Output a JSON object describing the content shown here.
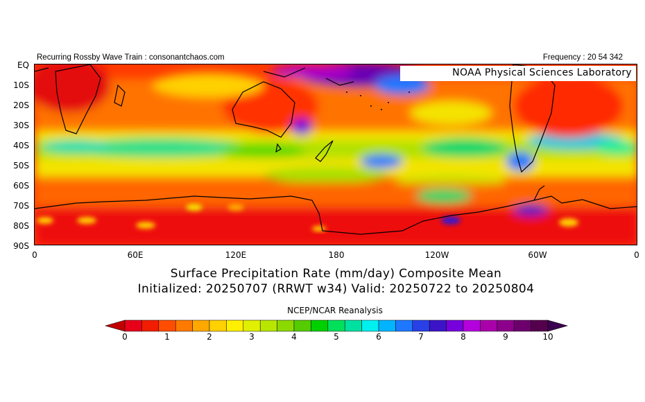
{
  "header": {
    "left_text": "Recurring Rossby Wave Train : consonantchaos.com",
    "right_text": "Frequency : 20 54 342",
    "lab_label": "NOAA Physical Sciences Laboratory"
  },
  "map": {
    "y_labels": [
      "EQ",
      "10S",
      "20S",
      "30S",
      "40S",
      "50S",
      "60S",
      "70S",
      "80S",
      "90S"
    ],
    "x_labels": [
      "0",
      "60E",
      "120E",
      "180",
      "120W",
      "60W",
      "0"
    ],
    "legend_title": "NCEP/NCAR Reanalysis"
  },
  "titles": {
    "line1": "Surface Precipitation Rate (mm/day) Composite Mean",
    "line2": "Initialized: 20250707 (RRWT w34) Valid: 20250722 to 20250804"
  },
  "colorbar": {
    "labels": [
      "0",
      "1",
      "2",
      "3",
      "4",
      "5",
      "6",
      "7",
      "8",
      "9",
      "10"
    ],
    "colors": [
      "#e8001a",
      "#f21d00",
      "#ff4d00",
      "#ff7a00",
      "#ffa800",
      "#ffd100",
      "#fff000",
      "#e0f000",
      "#b8e600",
      "#8cd900",
      "#55cc00",
      "#00d000",
      "#00e05a",
      "#00e0a0",
      "#00f0f0",
      "#00b4ff",
      "#1e78ff",
      "#2840e6",
      "#3c14c8",
      "#7800dc",
      "#b400dc",
      "#aa00aa",
      "#8c008c",
      "#6e006e",
      "#55004d"
    ],
    "end_low": "#c00000",
    "end_high": "#3c0050"
  }
}
